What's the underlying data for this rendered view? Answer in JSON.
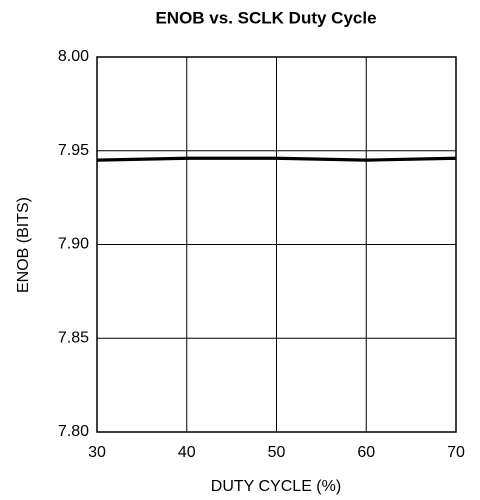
{
  "chart_data": {
    "type": "line",
    "title": "ENOB vs. SCLK Duty Cycle",
    "xlabel": "DUTY CYCLE (%)",
    "ylabel": "ENOB (BITS)",
    "x": [
      30,
      40,
      50,
      60,
      70
    ],
    "series": [
      {
        "color": "#000000",
        "values": [
          7.945,
          7.946,
          7.946,
          7.945,
          7.946
        ]
      }
    ],
    "xlim": [
      30,
      70
    ],
    "xticks": [
      30,
      40,
      50,
      60,
      70
    ],
    "ylim": [
      7.8,
      8.0
    ],
    "yticks": [
      {
        "value": 7.8,
        "label": "7.80"
      },
      {
        "value": 7.85,
        "label": "7.85"
      },
      {
        "value": 7.9,
        "label": "7.90"
      },
      {
        "value": 7.95,
        "label": "7.95"
      },
      {
        "value": 8.0,
        "label": "8.00"
      }
    ],
    "grid": true
  }
}
